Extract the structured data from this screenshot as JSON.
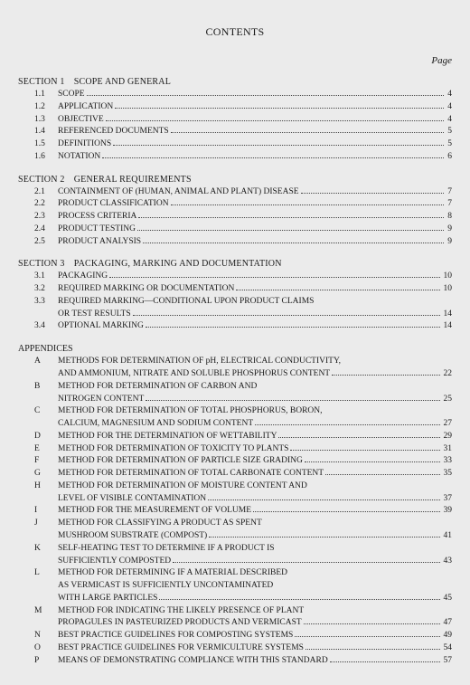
{
  "title": "CONTENTS",
  "page_label": "Page",
  "sections": [
    {
      "heading": "SECTION 1 SCOPE AND GENERAL",
      "items": [
        {
          "num": "1.1",
          "lines": [
            "SCOPE"
          ],
          "page": "4"
        },
        {
          "num": "1.2",
          "lines": [
            "APPLICATION"
          ],
          "page": "4"
        },
        {
          "num": "1.3",
          "lines": [
            "OBJECTIVE"
          ],
          "page": "4"
        },
        {
          "num": "1.4",
          "lines": [
            "REFERENCED DOCUMENTS"
          ],
          "page": "5"
        },
        {
          "num": "1.5",
          "lines": [
            "DEFINITIONS"
          ],
          "page": "5"
        },
        {
          "num": "1.6",
          "lines": [
            "NOTATION"
          ],
          "page": "6"
        }
      ]
    },
    {
      "heading": "SECTION 2 GENERAL REQUIREMENTS",
      "items": [
        {
          "num": "2.1",
          "lines": [
            "CONTAINMENT OF (HUMAN, ANIMAL AND PLANT) DISEASE"
          ],
          "page": "7"
        },
        {
          "num": "2.2",
          "lines": [
            "PRODUCT CLASSIFICATION"
          ],
          "page": "7"
        },
        {
          "num": "2.3",
          "lines": [
            "PROCESS CRITERIA"
          ],
          "page": "8"
        },
        {
          "num": "2.4",
          "lines": [
            "PRODUCT TESTING"
          ],
          "page": "9"
        },
        {
          "num": "2.5",
          "lines": [
            "PRODUCT ANALYSIS"
          ],
          "page": "9"
        }
      ]
    },
    {
      "heading": "SECTION 3 PACKAGING, MARKING AND DOCUMENTATION",
      "items": [
        {
          "num": "3.1",
          "lines": [
            "PACKAGING"
          ],
          "page": "10"
        },
        {
          "num": "3.2",
          "lines": [
            "REQUIRED MARKING OR DOCUMENTATION"
          ],
          "page": "10"
        },
        {
          "num": "3.3",
          "lines": [
            "REQUIRED MARKING—CONDITIONAL UPON PRODUCT CLAIMS",
            "OR TEST RESULTS"
          ],
          "page": "14"
        },
        {
          "num": "3.4",
          "lines": [
            "OPTIONAL MARKING"
          ],
          "page": "14"
        }
      ]
    }
  ],
  "appendices_heading": "APPENDICES",
  "appendices": [
    {
      "num": "A",
      "lines": [
        "METHODS FOR DETERMINATION OF pH, ELECTRICAL CONDUCTIVITY,",
        "AND AMMONIUM, NITRATE AND SOLUBLE PHOSPHORUS CONTENT"
      ],
      "page": "22"
    },
    {
      "num": "B",
      "lines": [
        "METHOD FOR DETERMINATION OF CARBON AND",
        "NITROGEN CONTENT"
      ],
      "page": "25"
    },
    {
      "num": "C",
      "lines": [
        "METHOD FOR DETERMINATION OF TOTAL PHOSPHORUS, BORON,",
        "CALCIUM, MAGNESIUM AND SODIUM CONTENT"
      ],
      "page": "27"
    },
    {
      "num": "D",
      "lines": [
        "METHOD FOR THE DETERMINATION OF WETTABILITY"
      ],
      "page": "29"
    },
    {
      "num": "E",
      "lines": [
        "METHOD FOR DETERMINATION OF TOXICITY TO PLANTS"
      ],
      "page": "31"
    },
    {
      "num": "F",
      "lines": [
        "METHOD FOR DETERMINATION OF PARTICLE SIZE GRADING"
      ],
      "page": "33"
    },
    {
      "num": "G",
      "lines": [
        "METHOD FOR DETERMINATION OF TOTAL CARBONATE CONTENT"
      ],
      "page": "35"
    },
    {
      "num": "H",
      "lines": [
        "METHOD FOR DETERMINATION OF MOISTURE CONTENT AND",
        "LEVEL OF VISIBLE CONTAMINATION"
      ],
      "page": "37"
    },
    {
      "num": "I",
      "lines": [
        "METHOD FOR THE MEASUREMENT OF VOLUME"
      ],
      "page": "39"
    },
    {
      "num": "J",
      "lines": [
        "METHOD FOR CLASSIFYING A PRODUCT AS SPENT",
        "MUSHROOM SUBSTRATE (COMPOST)"
      ],
      "page": "41"
    },
    {
      "num": "K",
      "lines": [
        "SELF-HEATING TEST TO DETERMINE IF A PRODUCT IS",
        "SUFFICIENTLY COMPOSTED"
      ],
      "page": "43"
    },
    {
      "num": "L",
      "lines": [
        "METHOD FOR DETERMINING IF A MATERIAL DESCRIBED",
        "AS VERMICAST IS SUFFICIENTLY UNCONTAMINATED",
        "WITH LARGE PARTICLES"
      ],
      "page": "45"
    },
    {
      "num": "M",
      "lines": [
        "METHOD FOR INDICATING THE LIKELY PRESENCE OF PLANT",
        "PROPAGULES IN PASTEURIZED PRODUCTS AND VERMICAST"
      ],
      "page": "47"
    },
    {
      "num": "N",
      "lines": [
        "BEST PRACTICE GUIDELINES FOR COMPOSTING SYSTEMS"
      ],
      "page": "49"
    },
    {
      "num": "O",
      "lines": [
        "BEST PRACTICE GUIDELINES FOR VERMICULTURE SYSTEMS"
      ],
      "page": "54"
    },
    {
      "num": "P",
      "lines": [
        "MEANS OF DEMONSTRATING COMPLIANCE WITH THIS STANDARD"
      ],
      "page": "57"
    }
  ]
}
